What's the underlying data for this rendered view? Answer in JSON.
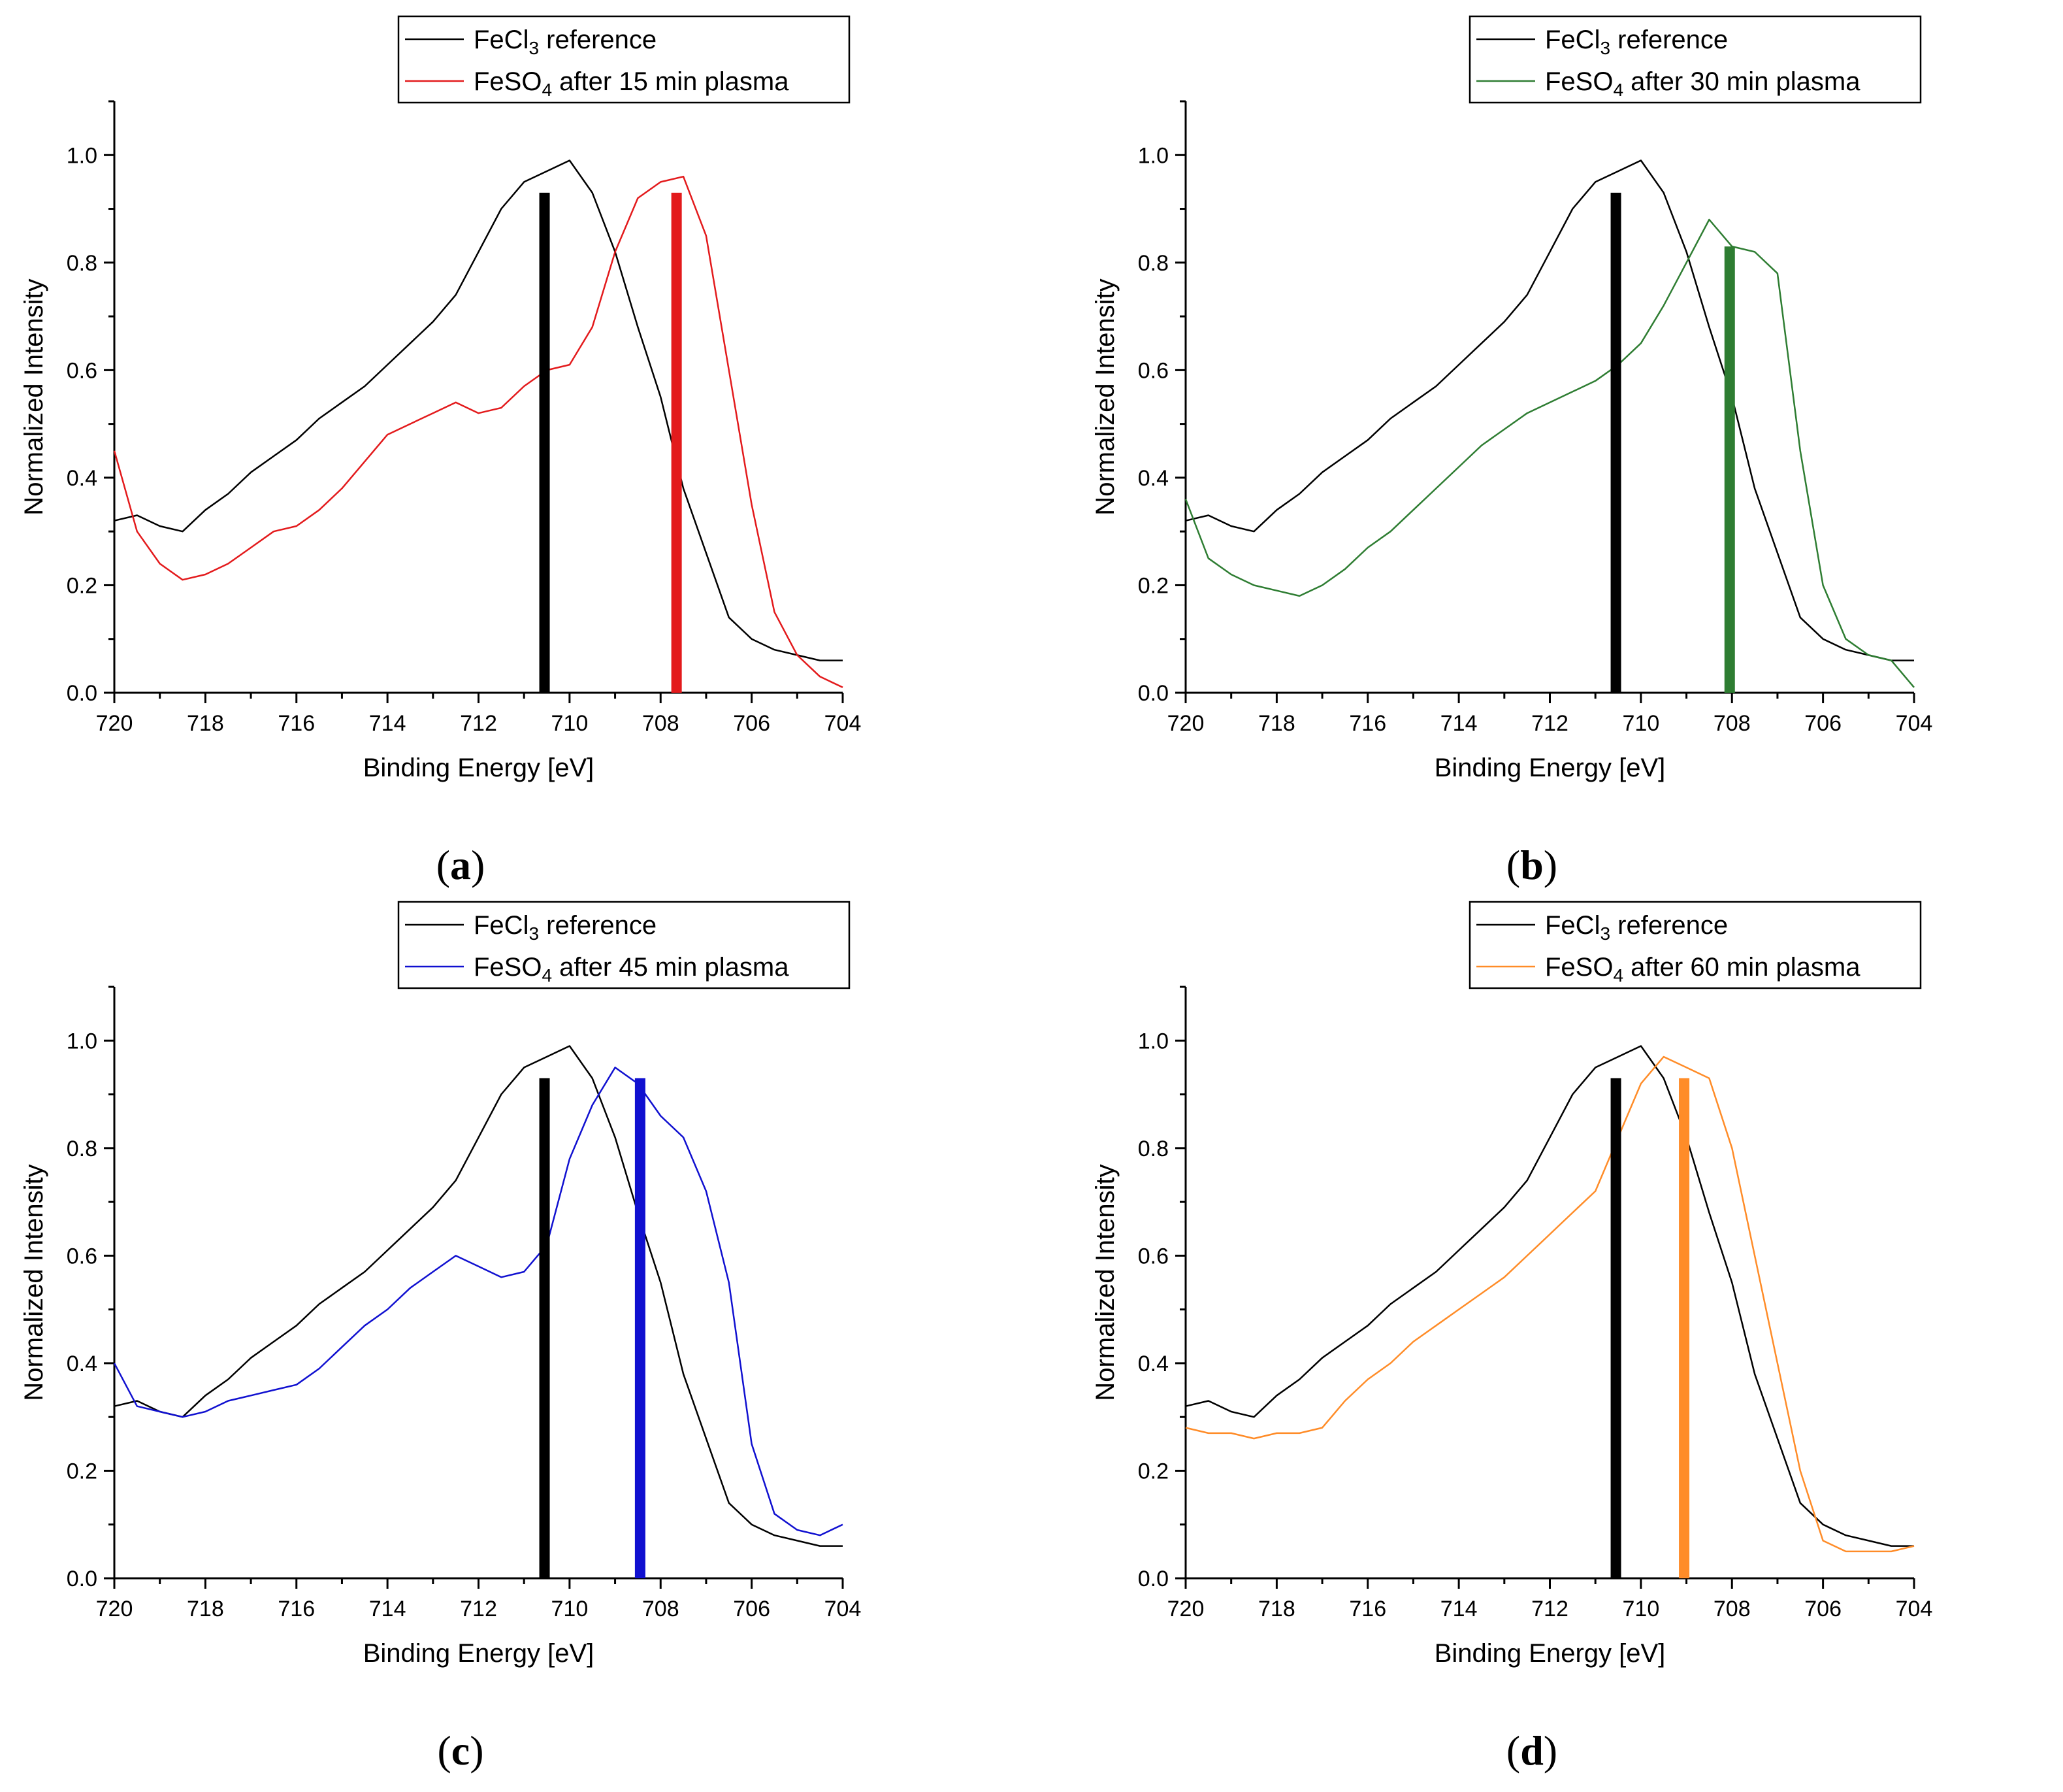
{
  "figure": {
    "panels": [
      {
        "caption": "a",
        "label_open": "(",
        "label_close": ")"
      },
      {
        "caption": "b",
        "label_open": "(",
        "label_close": ")"
      },
      {
        "caption": "c",
        "label_open": "(",
        "label_close": ")"
      },
      {
        "caption": "d",
        "label_open": "(",
        "label_close": ")"
      }
    ]
  },
  "colors": {
    "reference": "#000000",
    "series": [
      "#e31a1c",
      "#2e7d32",
      "#1010d0",
      "#ff8c28"
    ]
  },
  "chart_data": [
    {
      "type": "line",
      "panel": "a",
      "title": "",
      "xlabel": "Binding Energy [eV]",
      "ylabel": "Normalized Intensity",
      "xlim": [
        720,
        704
      ],
      "ylim": [
        0.0,
        1.1
      ],
      "xticks": [
        "720",
        "718",
        "716",
        "714",
        "712",
        "710",
        "708",
        "706",
        "704"
      ],
      "yticks": [
        "0.0",
        "0.2",
        "0.4",
        "0.6",
        "0.8",
        "1.0"
      ],
      "legend_position": "top-right",
      "series": [
        {
          "name": "FeCl3 reference",
          "legend_main": "FeCl",
          "legend_sub": "3",
          "legend_rest": " reference",
          "color": "#000000",
          "x": [
            720,
            719.5,
            719,
            718.5,
            718,
            717.5,
            717,
            716.5,
            716,
            715.5,
            715,
            714.5,
            714,
            713.5,
            713,
            712.5,
            712,
            711.5,
            711,
            710.5,
            710,
            709.5,
            709,
            708.5,
            708,
            707.5,
            707,
            706.5,
            706,
            705.5,
            705,
            704.5,
            704
          ],
          "y": [
            0.32,
            0.33,
            0.31,
            0.3,
            0.34,
            0.37,
            0.41,
            0.44,
            0.47,
            0.51,
            0.54,
            0.57,
            0.61,
            0.65,
            0.69,
            0.74,
            0.82,
            0.9,
            0.95,
            0.97,
            0.99,
            0.93,
            0.82,
            0.68,
            0.55,
            0.38,
            0.26,
            0.14,
            0.1,
            0.08,
            0.07,
            0.06,
            0.06
          ]
        },
        {
          "name": "FeSO4 after 15 min plasma",
          "legend_main": "FeSO",
          "legend_sub": "4",
          "legend_rest": " after 15 min plasma",
          "color": "#e31a1c",
          "x": [
            720,
            719.5,
            719,
            718.5,
            718,
            717.5,
            717,
            716.5,
            716,
            715.5,
            715,
            714.5,
            714,
            713.5,
            713,
            712.5,
            712,
            711.5,
            711,
            710.5,
            710,
            709.5,
            709,
            708.5,
            708,
            707.5,
            707,
            706.5,
            706,
            705.5,
            705,
            704.5,
            704
          ],
          "y": [
            0.45,
            0.3,
            0.24,
            0.21,
            0.22,
            0.24,
            0.27,
            0.3,
            0.31,
            0.34,
            0.38,
            0.43,
            0.48,
            0.5,
            0.52,
            0.54,
            0.52,
            0.53,
            0.57,
            0.6,
            0.61,
            0.68,
            0.82,
            0.92,
            0.95,
            0.96,
            0.85,
            0.6,
            0.35,
            0.15,
            0.07,
            0.03,
            0.01
          ]
        }
      ],
      "vlines": [
        {
          "x": 710.55,
          "height": 0.93,
          "color": "#000000"
        },
        {
          "x": 707.65,
          "height": 0.93,
          "color": "#e31a1c"
        }
      ]
    },
    {
      "type": "line",
      "panel": "b",
      "title": "",
      "xlabel": "Binding Energy [eV]",
      "ylabel": "Normalized Intensity",
      "xlim": [
        720,
        704
      ],
      "ylim": [
        0.0,
        1.1
      ],
      "xticks": [
        "720",
        "718",
        "716",
        "714",
        "712",
        "710",
        "708",
        "706",
        "704"
      ],
      "yticks": [
        "0.0",
        "0.2",
        "0.4",
        "0.6",
        "0.8",
        "1.0"
      ],
      "legend_position": "top-right",
      "series": [
        {
          "name": "FeCl3 reference",
          "legend_main": "FeCl",
          "legend_sub": "3",
          "legend_rest": " reference",
          "color": "#000000",
          "x": [
            720,
            719.5,
            719,
            718.5,
            718,
            717.5,
            717,
            716.5,
            716,
            715.5,
            715,
            714.5,
            714,
            713.5,
            713,
            712.5,
            712,
            711.5,
            711,
            710.5,
            710,
            709.5,
            709,
            708.5,
            708,
            707.5,
            707,
            706.5,
            706,
            705.5,
            705,
            704.5,
            704
          ],
          "y": [
            0.32,
            0.33,
            0.31,
            0.3,
            0.34,
            0.37,
            0.41,
            0.44,
            0.47,
            0.51,
            0.54,
            0.57,
            0.61,
            0.65,
            0.69,
            0.74,
            0.82,
            0.9,
            0.95,
            0.97,
            0.99,
            0.93,
            0.82,
            0.68,
            0.55,
            0.38,
            0.26,
            0.14,
            0.1,
            0.08,
            0.07,
            0.06,
            0.06
          ]
        },
        {
          "name": "FeSO4 after 30 min plasma",
          "legend_main": "FeSO",
          "legend_sub": "4",
          "legend_rest": " after 30 min plasma",
          "color": "#2e7d32",
          "x": [
            720,
            719.5,
            719,
            718.5,
            718,
            717.5,
            717,
            716.5,
            716,
            715.5,
            715,
            714.5,
            714,
            713.5,
            713,
            712.5,
            712,
            711.5,
            711,
            710.5,
            710,
            709.5,
            709,
            708.5,
            708,
            707.5,
            707,
            706.5,
            706,
            705.5,
            705,
            704.5,
            704
          ],
          "y": [
            0.36,
            0.25,
            0.22,
            0.2,
            0.19,
            0.18,
            0.2,
            0.23,
            0.27,
            0.3,
            0.34,
            0.38,
            0.42,
            0.46,
            0.49,
            0.52,
            0.54,
            0.56,
            0.58,
            0.61,
            0.65,
            0.72,
            0.8,
            0.88,
            0.83,
            0.82,
            0.78,
            0.45,
            0.2,
            0.1,
            0.07,
            0.06,
            0.01
          ]
        }
      ],
      "vlines": [
        {
          "x": 710.55,
          "height": 0.93,
          "color": "#000000"
        },
        {
          "x": 708.05,
          "height": 0.83,
          "color": "#2e7d32"
        }
      ]
    },
    {
      "type": "line",
      "panel": "c",
      "title": "",
      "xlabel": "Binding Energy [eV]",
      "ylabel": "Normalized Intensity",
      "xlim": [
        720,
        704
      ],
      "ylim": [
        0.0,
        1.1
      ],
      "xticks": [
        "720",
        "718",
        "716",
        "714",
        "712",
        "710",
        "708",
        "706",
        "704"
      ],
      "yticks": [
        "0.0",
        "0.2",
        "0.4",
        "0.6",
        "0.8",
        "1.0"
      ],
      "legend_position": "top-right",
      "series": [
        {
          "name": "FeCl3 reference",
          "legend_main": "FeCl",
          "legend_sub": "3",
          "legend_rest": " reference",
          "color": "#000000",
          "x": [
            720,
            719.5,
            719,
            718.5,
            718,
            717.5,
            717,
            716.5,
            716,
            715.5,
            715,
            714.5,
            714,
            713.5,
            713,
            712.5,
            712,
            711.5,
            711,
            710.5,
            710,
            709.5,
            709,
            708.5,
            708,
            707.5,
            707,
            706.5,
            706,
            705.5,
            705,
            704.5,
            704
          ],
          "y": [
            0.32,
            0.33,
            0.31,
            0.3,
            0.34,
            0.37,
            0.41,
            0.44,
            0.47,
            0.51,
            0.54,
            0.57,
            0.61,
            0.65,
            0.69,
            0.74,
            0.82,
            0.9,
            0.95,
            0.97,
            0.99,
            0.93,
            0.82,
            0.68,
            0.55,
            0.38,
            0.26,
            0.14,
            0.1,
            0.08,
            0.07,
            0.06,
            0.06
          ]
        },
        {
          "name": "FeSO4 after 45 min plasma",
          "legend_main": "FeSO",
          "legend_sub": "4",
          "legend_rest": " after 45 min plasma",
          "color": "#1010d0",
          "x": [
            720,
            719.5,
            719,
            718.5,
            718,
            717.5,
            717,
            716.5,
            716,
            715.5,
            715,
            714.5,
            714,
            713.5,
            713,
            712.5,
            712,
            711.5,
            711,
            710.5,
            710,
            709.5,
            709,
            708.5,
            708,
            707.5,
            707,
            706.5,
            706,
            705.5,
            705,
            704.5,
            704
          ],
          "y": [
            0.4,
            0.32,
            0.31,
            0.3,
            0.31,
            0.33,
            0.34,
            0.35,
            0.36,
            0.39,
            0.43,
            0.47,
            0.5,
            0.54,
            0.57,
            0.6,
            0.58,
            0.56,
            0.57,
            0.62,
            0.78,
            0.88,
            0.95,
            0.92,
            0.86,
            0.82,
            0.72,
            0.55,
            0.25,
            0.12,
            0.09,
            0.08,
            0.1
          ]
        }
      ],
      "vlines": [
        {
          "x": 710.55,
          "height": 0.93,
          "color": "#000000"
        },
        {
          "x": 708.45,
          "height": 0.93,
          "color": "#1010d0"
        }
      ]
    },
    {
      "type": "line",
      "panel": "d",
      "title": "",
      "xlabel": "Binding Energy [eV]",
      "ylabel": "Normalized Intensity",
      "xlim": [
        720,
        704
      ],
      "ylim": [
        0.0,
        1.1
      ],
      "xticks": [
        "720",
        "718",
        "716",
        "714",
        "712",
        "710",
        "708",
        "706",
        "704"
      ],
      "yticks": [
        "0.0",
        "0.2",
        "0.4",
        "0.6",
        "0.8",
        "1.0"
      ],
      "legend_position": "top-right",
      "series": [
        {
          "name": "FeCl3 reference",
          "legend_main": "FeCl",
          "legend_sub": "3",
          "legend_rest": " reference",
          "color": "#000000",
          "x": [
            720,
            719.5,
            719,
            718.5,
            718,
            717.5,
            717,
            716.5,
            716,
            715.5,
            715,
            714.5,
            714,
            713.5,
            713,
            712.5,
            712,
            711.5,
            711,
            710.5,
            710,
            709.5,
            709,
            708.5,
            708,
            707.5,
            707,
            706.5,
            706,
            705.5,
            705,
            704.5,
            704
          ],
          "y": [
            0.32,
            0.33,
            0.31,
            0.3,
            0.34,
            0.37,
            0.41,
            0.44,
            0.47,
            0.51,
            0.54,
            0.57,
            0.61,
            0.65,
            0.69,
            0.74,
            0.82,
            0.9,
            0.95,
            0.97,
            0.99,
            0.93,
            0.82,
            0.68,
            0.55,
            0.38,
            0.26,
            0.14,
            0.1,
            0.08,
            0.07,
            0.06,
            0.06
          ]
        },
        {
          "name": "FeSO4 after 60 min plasma",
          "legend_main": "FeSO",
          "legend_sub": "4",
          "legend_rest": " after 60 min plasma",
          "color": "#ff8c28",
          "x": [
            720,
            719.5,
            719,
            718.5,
            718,
            717.5,
            717,
            716.5,
            716,
            715.5,
            715,
            714.5,
            714,
            713.5,
            713,
            712.5,
            712,
            711.5,
            711,
            710.5,
            710,
            709.5,
            709,
            708.5,
            708,
            707.5,
            707,
            706.5,
            706,
            705.5,
            705,
            704.5,
            704
          ],
          "y": [
            0.28,
            0.27,
            0.27,
            0.26,
            0.27,
            0.27,
            0.28,
            0.33,
            0.37,
            0.4,
            0.44,
            0.47,
            0.5,
            0.53,
            0.56,
            0.6,
            0.64,
            0.68,
            0.72,
            0.82,
            0.92,
            0.97,
            0.95,
            0.93,
            0.8,
            0.6,
            0.4,
            0.2,
            0.07,
            0.05,
            0.05,
            0.05,
            0.06
          ]
        }
      ],
      "vlines": [
        {
          "x": 710.55,
          "height": 0.93,
          "color": "#000000"
        },
        {
          "x": 709.05,
          "height": 0.93,
          "color": "#ff8c28"
        }
      ]
    }
  ]
}
